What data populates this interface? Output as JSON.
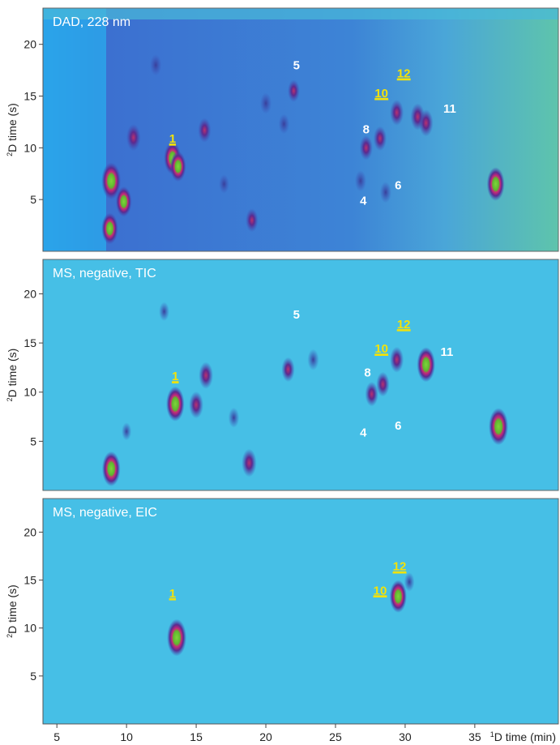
{
  "chart_data": [
    {
      "type": "heatmap",
      "title": "DAD, 228 nm",
      "ylabel": "2D time (s)",
      "xlim": [
        4,
        41
      ],
      "ylim": [
        0,
        23.5
      ],
      "y_ticks": [
        5,
        10,
        15,
        20
      ],
      "colors": {
        "background": "#3d8fd8",
        "right_background": "#5fc0b0"
      },
      "peaks": [
        {
          "x": 8.9,
          "y": 6.8,
          "i": 1.0
        },
        {
          "x": 8.8,
          "y": 2.2,
          "i": 0.75
        },
        {
          "x": 9.8,
          "y": 4.8,
          "i": 0.7
        },
        {
          "x": 10.5,
          "y": 11.0,
          "i": 0.55
        },
        {
          "x": 13.3,
          "y": 9.0,
          "i": 0.8
        },
        {
          "x": 13.7,
          "y": 8.2,
          "i": 0.7
        },
        {
          "x": 15.6,
          "y": 11.7,
          "i": 0.45
        },
        {
          "x": 19.0,
          "y": 3.0,
          "i": 0.4
        },
        {
          "x": 12.1,
          "y": 18.0,
          "i": 0.3
        },
        {
          "x": 20.0,
          "y": 14.3,
          "i": 0.3
        },
        {
          "x": 22.0,
          "y": 15.5,
          "i": 0.35
        },
        {
          "x": 27.2,
          "y": 10.0,
          "i": 0.45
        },
        {
          "x": 28.2,
          "y": 10.9,
          "i": 0.45
        },
        {
          "x": 29.4,
          "y": 13.4,
          "i": 0.5
        },
        {
          "x": 30.9,
          "y": 13.0,
          "i": 0.55
        },
        {
          "x": 31.5,
          "y": 12.4,
          "i": 0.55
        },
        {
          "x": 26.8,
          "y": 6.8,
          "i": 0.3
        },
        {
          "x": 28.6,
          "y": 5.7,
          "i": 0.3
        },
        {
          "x": 36.5,
          "y": 6.5,
          "i": 0.85
        },
        {
          "x": 21.3,
          "y": 12.3,
          "i": 0.25
        },
        {
          "x": 17.0,
          "y": 6.5,
          "i": 0.2
        }
      ],
      "labels": [
        {
          "text": "1",
          "x": 13.3,
          "y": 10.5,
          "style": "yellow"
        },
        {
          "text": "4",
          "x": 27.0,
          "y": 4.5,
          "style": "white"
        },
        {
          "text": "5",
          "x": 22.2,
          "y": 17.6,
          "style": "white"
        },
        {
          "text": "6",
          "x": 29.5,
          "y": 6.0,
          "style": "white"
        },
        {
          "text": "8",
          "x": 27.2,
          "y": 11.4,
          "style": "white"
        },
        {
          "text": "10",
          "x": 28.3,
          "y": 14.9,
          "style": "yellow"
        },
        {
          "text": "11",
          "x": 33.2,
          "y": 13.4,
          "style": "white"
        },
        {
          "text": "12",
          "x": 29.9,
          "y": 16.8,
          "style": "yellow"
        }
      ]
    },
    {
      "type": "heatmap",
      "title": "MS, negative, TIC",
      "ylabel": "2D time (s)",
      "xlim": [
        4,
        41
      ],
      "ylim": [
        0,
        23.5
      ],
      "y_ticks": [
        5,
        10,
        15,
        20
      ],
      "colors": {
        "background": "#46bfe6"
      },
      "peaks": [
        {
          "x": 8.9,
          "y": 2.2,
          "i": 0.9
        },
        {
          "x": 13.5,
          "y": 8.8,
          "i": 0.9
        },
        {
          "x": 15.0,
          "y": 8.7,
          "i": 0.55
        },
        {
          "x": 15.7,
          "y": 11.7,
          "i": 0.55
        },
        {
          "x": 18.8,
          "y": 2.8,
          "i": 0.6
        },
        {
          "x": 21.6,
          "y": 12.3,
          "i": 0.45
        },
        {
          "x": 23.4,
          "y": 13.3,
          "i": 0.3
        },
        {
          "x": 27.6,
          "y": 9.8,
          "i": 0.45
        },
        {
          "x": 28.4,
          "y": 10.8,
          "i": 0.45
        },
        {
          "x": 29.4,
          "y": 13.3,
          "i": 0.5
        },
        {
          "x": 31.5,
          "y": 12.8,
          "i": 0.9
        },
        {
          "x": 36.7,
          "y": 6.5,
          "i": 1.0
        },
        {
          "x": 17.7,
          "y": 7.4,
          "i": 0.25
        },
        {
          "x": 12.7,
          "y": 18.2,
          "i": 0.2
        },
        {
          "x": 10.0,
          "y": 6.0,
          "i": 0.15
        }
      ],
      "labels": [
        {
          "text": "1",
          "x": 13.5,
          "y": 11.2,
          "style": "yellow"
        },
        {
          "text": "4",
          "x": 27.0,
          "y": 5.5,
          "style": "white"
        },
        {
          "text": "5",
          "x": 22.2,
          "y": 17.5,
          "style": "white"
        },
        {
          "text": "6",
          "x": 29.5,
          "y": 6.2,
          "style": "white"
        },
        {
          "text": "8",
          "x": 27.3,
          "y": 11.6,
          "style": "white"
        },
        {
          "text": "10",
          "x": 28.3,
          "y": 14.0,
          "style": "yellow"
        },
        {
          "text": "11",
          "x": 33.0,
          "y": 13.7,
          "style": "white"
        },
        {
          "text": "12",
          "x": 29.9,
          "y": 16.5,
          "style": "yellow"
        }
      ]
    },
    {
      "type": "heatmap",
      "title": "MS, negative, EIC",
      "ylabel": "2D time (s)",
      "xlabel": "1D time (min)",
      "xlim": [
        4,
        41
      ],
      "ylim": [
        0,
        23.5
      ],
      "y_ticks": [
        5,
        10,
        15,
        20
      ],
      "x_ticks": [
        5,
        10,
        15,
        20,
        25,
        30,
        35
      ],
      "colors": {
        "background": "#46bfe6"
      },
      "peaks": [
        {
          "x": 13.6,
          "y": 9.0,
          "i": 1.0
        },
        {
          "x": 29.5,
          "y": 13.3,
          "i": 0.8
        },
        {
          "x": 30.3,
          "y": 14.8,
          "i": 0.2
        }
      ],
      "labels": [
        {
          "text": "1",
          "x": 13.3,
          "y": 13.2,
          "style": "yellow"
        },
        {
          "text": "10",
          "x": 28.2,
          "y": 13.5,
          "style": "yellow"
        },
        {
          "text": "12",
          "x": 29.6,
          "y": 16.0,
          "style": "yellow"
        }
      ]
    }
  ]
}
